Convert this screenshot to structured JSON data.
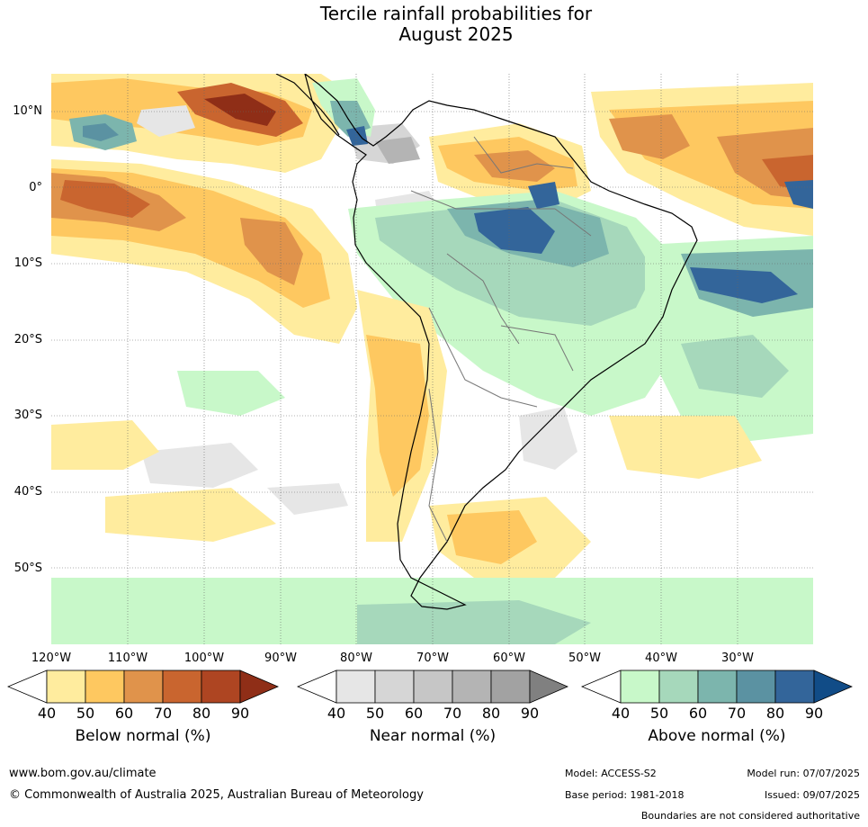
{
  "title": {
    "line1": "Tercile rainfall probabilities for",
    "line2": "August 2025"
  },
  "map": {
    "lat_labels": [
      "10°N",
      "0°",
      "10°S",
      "20°S",
      "30°S",
      "40°S",
      "50°S"
    ],
    "lon_labels": [
      "120°W",
      "110°W",
      "100°W",
      "90°W",
      "80°W",
      "70°W",
      "60°W",
      "50°W",
      "40°W",
      "30°W"
    ],
    "bounds": {
      "lon_min": -122,
      "lon_max": -22,
      "lat_min": -60,
      "lat_max": 15
    }
  },
  "colorbars": [
    {
      "label": "Below normal (%)",
      "ticks": [
        "40",
        "50",
        "60",
        "70",
        "80",
        "90"
      ],
      "colors": [
        "#ffffff",
        "#ffec9e",
        "#fec860",
        "#e0934b",
        "#c9652f",
        "#ae4522",
        "#8f2e17"
      ]
    },
    {
      "label": "Near normal (%)",
      "ticks": [
        "40",
        "50",
        "60",
        "70",
        "80",
        "90"
      ],
      "colors": [
        "#ffffff",
        "#e6e6e6",
        "#d6d6d6",
        "#c6c6c6",
        "#b4b4b4",
        "#a2a2a2",
        "#808080"
      ]
    },
    {
      "label": "Above normal (%)",
      "ticks": [
        "40",
        "50",
        "60",
        "70",
        "80",
        "90"
      ],
      "colors": [
        "#ffffff",
        "#c8f8c9",
        "#a6d8bb",
        "#7cb5ad",
        "#5b92a2",
        "#33659a",
        "#114c87"
      ]
    }
  ],
  "footer": {
    "website": "www.bom.gov.au/climate",
    "copyright": "© Commonwealth of Australia 2025, Australian Bureau of Meteorology",
    "model": "Model: ACCESS-S2",
    "model_run": "Model run: 07/07/2025",
    "base_period": "Base period: 1981-2018",
    "issued": "Issued: 09/07/2025",
    "disclaimer": "Boundaries are not considered authoritative"
  }
}
